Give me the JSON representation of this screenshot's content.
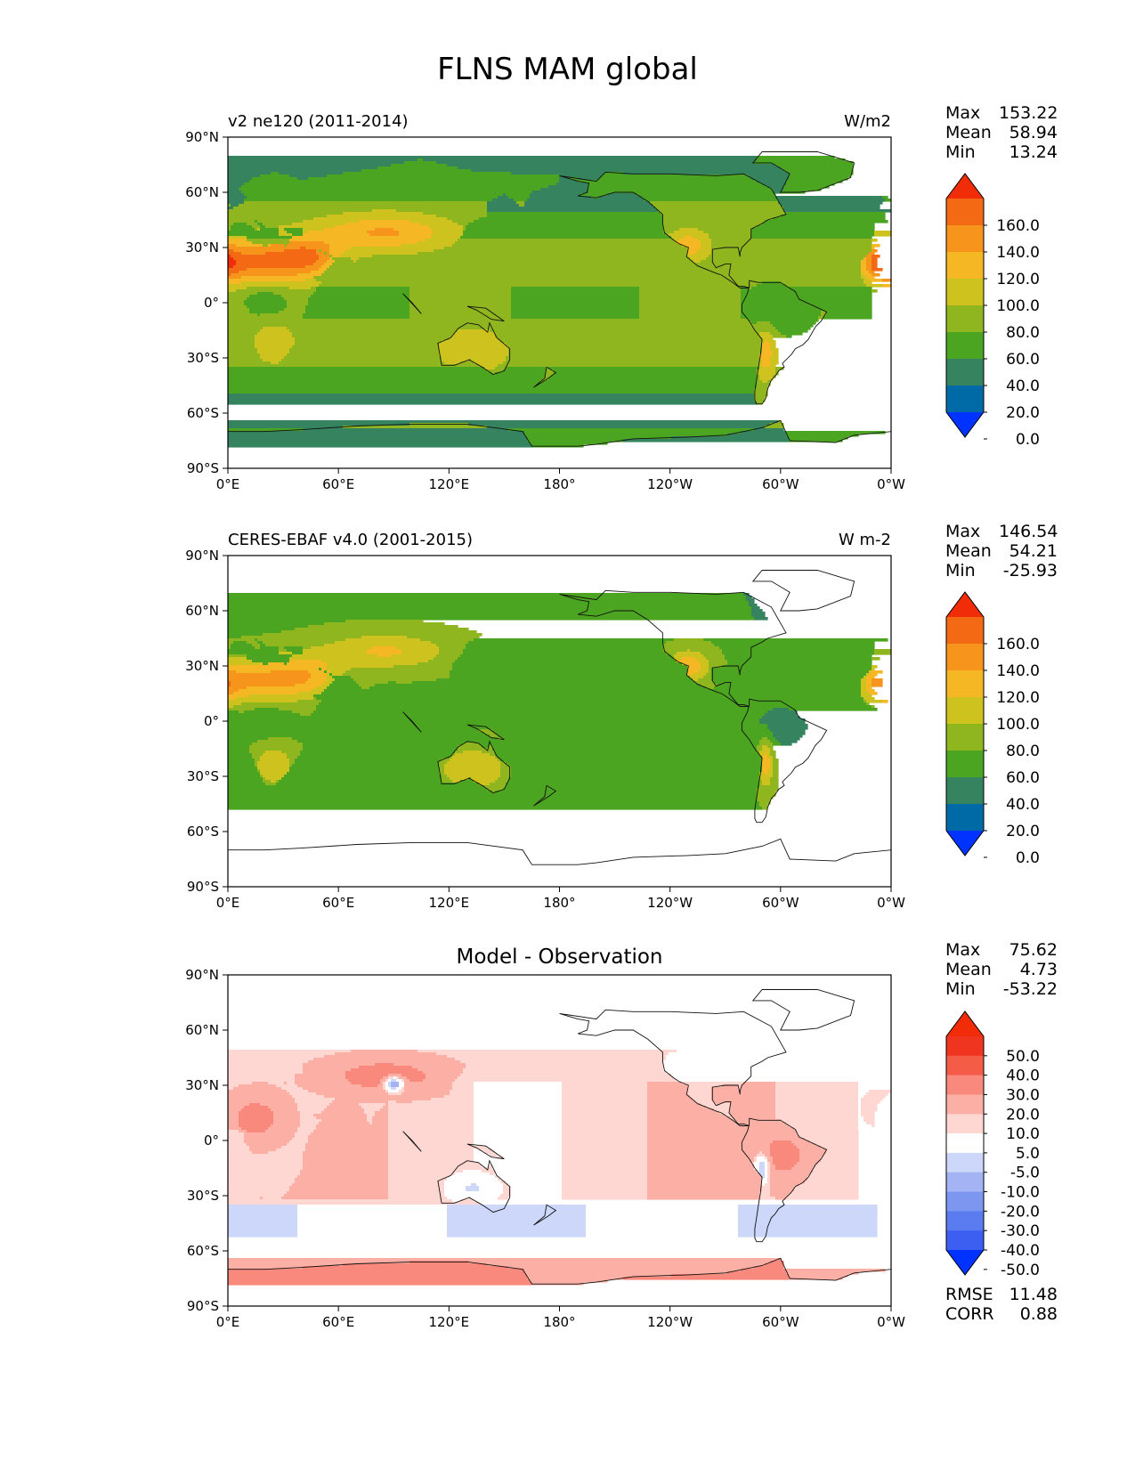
{
  "title": "FLNS MAM global",
  "axes": {
    "lon_ticks": [
      "0°E",
      "60°E",
      "120°E",
      "180°",
      "120°W",
      "60°W",
      "0°W"
    ],
    "lat_ticks": [
      "90°N",
      "60°N",
      "30°N",
      "0°",
      "30°S",
      "60°S",
      "90°S"
    ]
  },
  "panels": [
    {
      "left_title": "v2 ne120 (2011-2014)",
      "right_title": "W/m2",
      "center_title": "",
      "stats": {
        "max_label": "Max",
        "max": "153.22",
        "mean_label": "Mean",
        "mean": "58.94",
        "min_label": "Min",
        "min": "13.24"
      },
      "colorbar": {
        "labels": [
          "160.0",
          "140.0",
          "120.0",
          "100.0",
          "80.0",
          "60.0",
          "40.0",
          "20.0",
          "0.0"
        ],
        "colors": [
          "#0033ff",
          "#006aa6",
          "#35845f",
          "#4ba520",
          "#8fb51f",
          "#cdc21e",
          "#f5b723",
          "#f7941b",
          "#f46a14",
          "#f02d08"
        ]
      },
      "field": "model"
    },
    {
      "left_title": "CERES-EBAF v4.0 (2001-2015)",
      "right_title": "W m-2",
      "center_title": "",
      "stats": {
        "max_label": "Max",
        "max": "146.54",
        "mean_label": "Mean",
        "mean": "54.21",
        "min_label": "Min",
        "min": "-25.93"
      },
      "colorbar": {
        "labels": [
          "160.0",
          "140.0",
          "120.0",
          "100.0",
          "80.0",
          "60.0",
          "40.0",
          "20.0",
          "0.0"
        ],
        "colors": [
          "#0033ff",
          "#006aa6",
          "#35845f",
          "#4ba520",
          "#8fb51f",
          "#cdc21e",
          "#f5b723",
          "#f7941b",
          "#f46a14",
          "#f02d08"
        ]
      },
      "field": "obs"
    },
    {
      "left_title": "",
      "right_title": "",
      "center_title": "Model - Observation",
      "stats": {
        "max_label": "Max",
        "max": "75.62",
        "mean_label": "Mean",
        "mean": "4.73",
        "min_label": "Min",
        "min": "-53.22"
      },
      "colorbar": {
        "labels": [
          "50.0",
          "40.0",
          "30.0",
          "20.0",
          "10.0",
          "5.0",
          "-5.0",
          "-10.0",
          "-20.0",
          "-30.0",
          "-40.0",
          "-50.0"
        ],
        "colors": [
          "#0033ff",
          "#3c5ff2",
          "#5a7cf0",
          "#7d97f0",
          "#a3b3f3",
          "#ccd7fa",
          "#ffffff",
          "#fed7d2",
          "#fcb0a5",
          "#f9897c",
          "#f45c48",
          "#ef3520",
          "#f02d08"
        ]
      },
      "extra_stats": {
        "rmse_label": "RMSE",
        "rmse": "11.48",
        "corr_label": "CORR",
        "corr": "0.88"
      },
      "field": "diff"
    }
  ]
}
